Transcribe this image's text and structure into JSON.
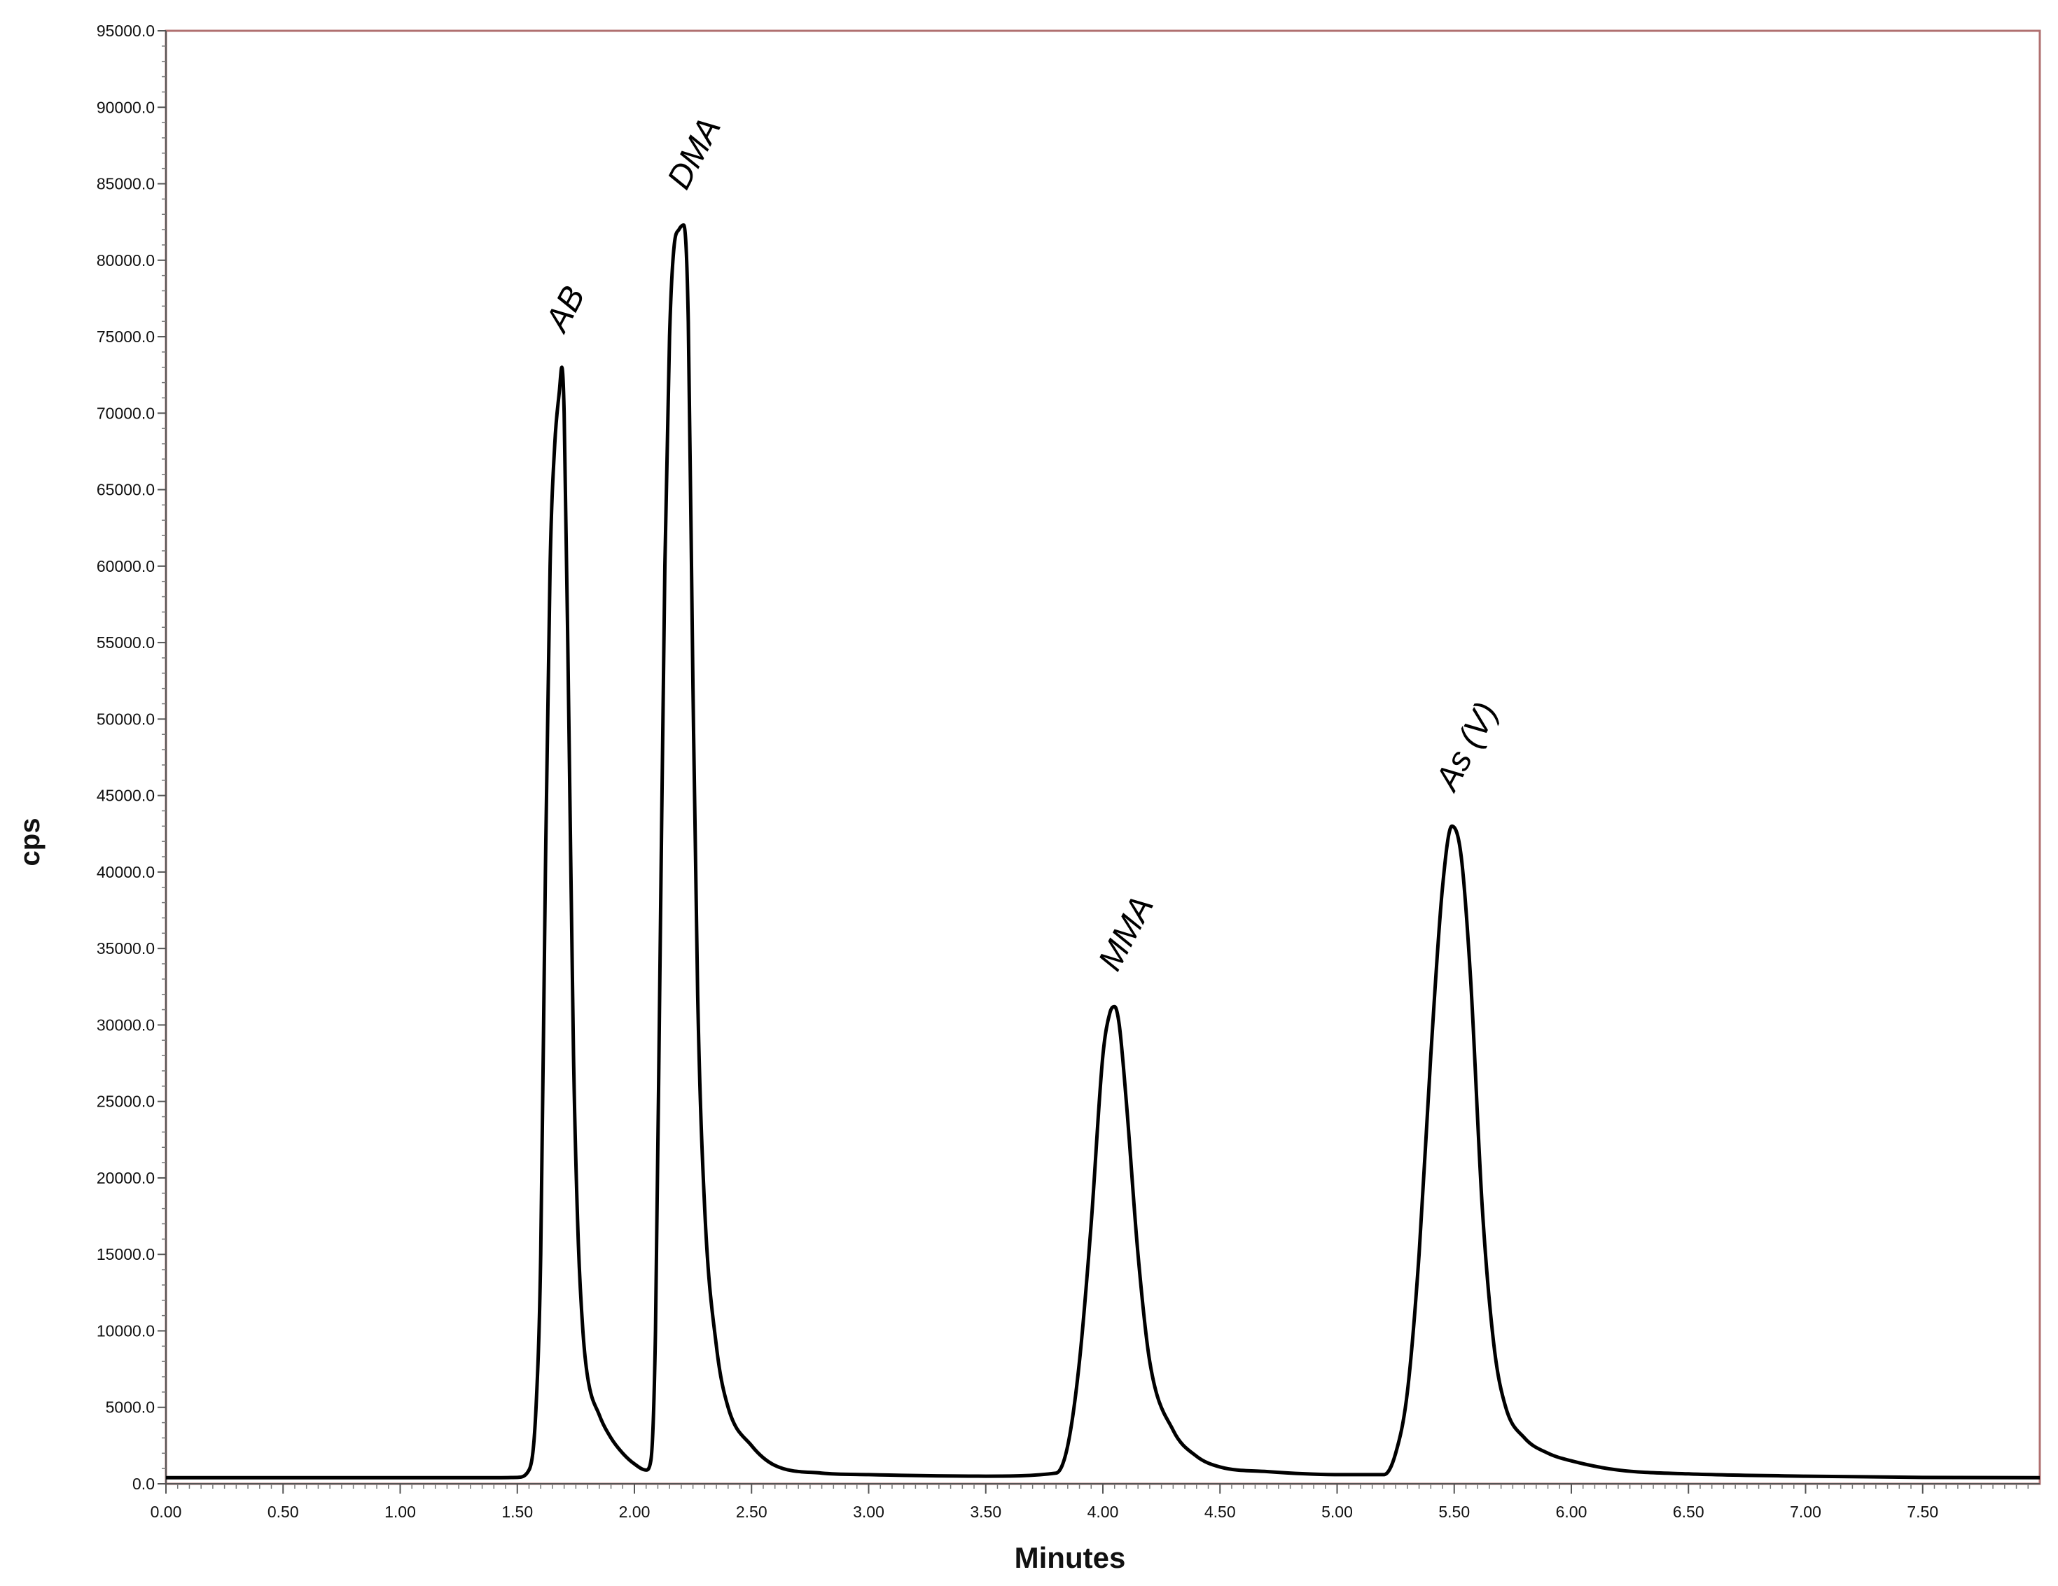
{
  "chart_data": {
    "type": "line",
    "xlabel": "Minutes",
    "ylabel": "cps",
    "xlim": [
      0.0,
      8.0
    ],
    "ylim": [
      0,
      95000
    ],
    "x_ticks": [
      "0.00",
      "0.50",
      "1.00",
      "1.50",
      "2.00",
      "2.50",
      "3.00",
      "3.50",
      "4.00",
      "4.50",
      "5.00",
      "5.50",
      "6.00",
      "6.50",
      "7.00",
      "7.50"
    ],
    "y_ticks": [
      "0.0",
      "5000.0",
      "10000.0",
      "15000.0",
      "20000.0",
      "25000.0",
      "30000.0",
      "35000.0",
      "40000.0",
      "45000.0",
      "50000.0",
      "55000.0",
      "60000.0",
      "65000.0",
      "70000.0",
      "75000.0",
      "80000.0",
      "85000.0",
      "90000.0",
      "95000.0"
    ],
    "grid": false,
    "colors": {
      "line": "#000000",
      "frame": "#b07070",
      "axis": "#555555"
    },
    "peaks": [
      {
        "label": "AB",
        "x": 1.69,
        "y": 73000
      },
      {
        "label": "DMA",
        "x": 2.21,
        "y": 82300
      },
      {
        "label": "MMA",
        "x": 4.05,
        "y": 31200
      },
      {
        "label": "As (V)",
        "x": 5.49,
        "y": 43000
      }
    ],
    "series": [
      {
        "x": [
          0.0,
          0.5,
          1.0,
          1.4,
          1.5,
          1.55,
          1.58,
          1.6,
          1.62,
          1.64,
          1.66,
          1.68,
          1.69,
          1.7,
          1.72,
          1.74,
          1.76,
          1.78,
          1.8,
          1.85,
          1.9,
          1.95,
          2.0,
          2.05,
          2.07,
          2.09,
          2.11,
          2.13,
          2.15,
          2.17,
          2.19,
          2.21,
          2.23,
          2.25,
          2.27,
          2.3,
          2.35,
          2.4,
          2.5,
          2.6,
          2.8,
          3.0,
          3.5,
          3.8,
          3.85,
          3.9,
          3.95,
          4.0,
          4.03,
          4.05,
          4.07,
          4.1,
          4.15,
          4.2,
          4.3,
          4.4,
          4.5,
          4.7,
          5.0,
          5.2,
          5.25,
          5.3,
          5.35,
          5.4,
          5.45,
          5.49,
          5.53,
          5.57,
          5.62,
          5.67,
          5.72,
          5.8,
          5.9,
          6.0,
          6.2,
          6.5,
          7.0,
          7.5,
          8.0
        ],
        "y": [
          400,
          400,
          400,
          400,
          420,
          900,
          5000,
          15000,
          40000,
          60000,
          68000,
          71500,
          73000,
          70000,
          50000,
          28000,
          16000,
          10000,
          7000,
          4500,
          3000,
          2000,
          1300,
          900,
          1500,
          10000,
          35000,
          60000,
          75000,
          81000,
          82000,
          82300,
          76000,
          52000,
          32000,
          18000,
          9000,
          5000,
          2500,
          1200,
          700,
          600,
          500,
          700,
          2500,
          8000,
          17000,
          28000,
          30800,
          31200,
          30000,
          25000,
          15000,
          8000,
          3500,
          1800,
          1100,
          800,
          600,
          600,
          2000,
          6000,
          15000,
          28000,
          39000,
          43000,
          41000,
          33000,
          18000,
          9000,
          5000,
          3000,
          2000,
          1500,
          900,
          650,
          500,
          420,
          400
        ]
      }
    ]
  }
}
